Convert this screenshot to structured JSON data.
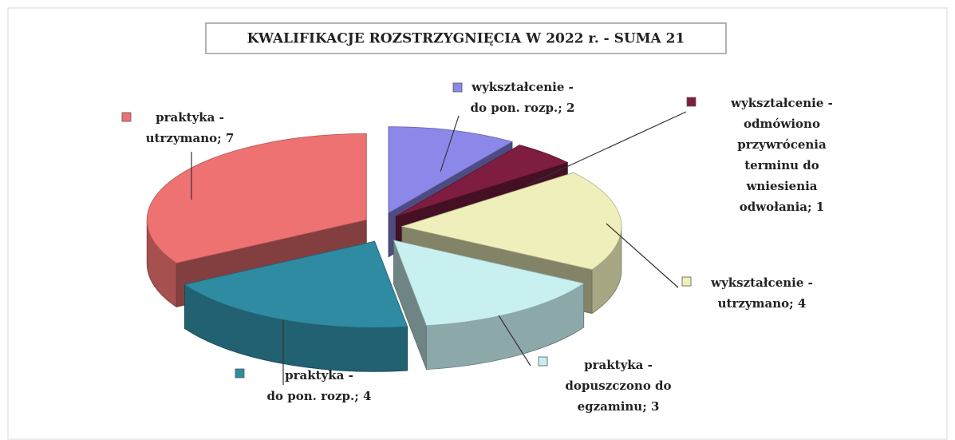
{
  "chart_data": {
    "type": "pie",
    "title": "KWALIFIKACJE ROZSTRZYGNIĘCIA W 2022 r. - SUMA 21",
    "labels": [
      [
        "wykształcenie -",
        "do pon. rozp.; 2"
      ],
      [
        "wykształcenie -",
        "odmówiono",
        "przywrócenia",
        "terminu do",
        "wniesienia",
        "odwołania; 1"
      ],
      [
        "wykształcenie -",
        "utrzymano; 4"
      ],
      [
        "praktyka -",
        "dopuszczono do",
        "egzaminu; 3"
      ],
      [
        "praktyka -",
        "do pon. rozp.; 4"
      ],
      [
        "praktyka -",
        "utrzymano; 7"
      ]
    ],
    "values": [
      2,
      1,
      4,
      3,
      4,
      7
    ],
    "colors": [
      "#8c88ea",
      "#7e1d40",
      "#efefbc",
      "#c9f0f0",
      "#2f8ba2",
      "#ee7272"
    ]
  }
}
